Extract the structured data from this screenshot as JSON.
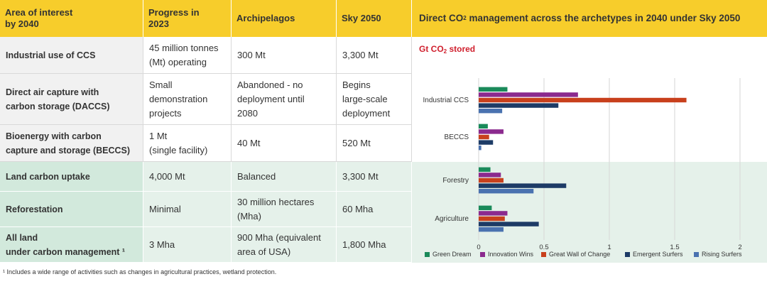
{
  "table": {
    "headers": [
      "Area of interest\nby 2040",
      "Progress in\n2023",
      "Archipelagos",
      "Sky 2050"
    ],
    "rows": [
      {
        "label": "Industrial use of CCS",
        "progress": "45 million tonnes\n(Mt) operating",
        "archipelagos": "300 Mt",
        "sky2050": "3,300 Mt"
      },
      {
        "label": "Direct air capture with\ncarbon storage (DACCS)",
        "progress": "Small\ndemonstration\nprojects",
        "archipelagos": "Abandoned - no\ndeployment until\n2080",
        "sky2050": "Begins\nlarge-scale\ndeployment"
      },
      {
        "label": "Bioenergy with carbon\ncapture and storage (BECCS)",
        "progress": "1 Mt\n(single facility)",
        "archipelagos": "40 Mt",
        "sky2050": "520 Mt"
      },
      {
        "label": "Land carbon uptake",
        "progress": "4,000 Mt",
        "archipelagos": "Balanced",
        "sky2050": "3,300 Mt"
      },
      {
        "label": "Reforestation",
        "progress": "Minimal",
        "archipelagos": "30 million hectares\n(Mha)",
        "sky2050": "60 Mha"
      },
      {
        "label": "All land\nunder carbon management ¹",
        "progress": "3 Mha",
        "archipelagos": "900 Mha (equivalent\narea of USA)",
        "sky2050": "1,800 Mha"
      }
    ]
  },
  "chart_data": {
    "type": "bar",
    "orientation": "horizontal",
    "title_prefix": "Direct CO",
    "title_sub": "2",
    "title_suffix": " management across the archetypes in 2040 under Sky 2050",
    "subtitle_prefix": "Gt CO",
    "subtitle_sub": "2",
    "subtitle_suffix": " stored",
    "categories": [
      "Industrial CCS",
      "BECCS",
      "Forestry",
      "Agriculture"
    ],
    "xlim": [
      0,
      2
    ],
    "xticks": [
      "0",
      "0.5",
      "1",
      "1.5",
      "2"
    ],
    "xtick_values": [
      0,
      0.5,
      1,
      1.5,
      2
    ],
    "grid": true,
    "legend_position": "bottom",
    "series": [
      {
        "name": "Green Dream",
        "color": "#1a8a5a",
        "values": [
          0.22,
          0.07,
          0.09,
          0.1
        ]
      },
      {
        "name": "Innovation Wins",
        "color": "#8b2a8e",
        "values": [
          0.76,
          0.19,
          0.17,
          0.22
        ]
      },
      {
        "name": "Great Wall of Change",
        "color": "#c8401c",
        "values": [
          1.59,
          0.08,
          0.19,
          0.2
        ]
      },
      {
        "name": "Emergent Surfers",
        "color": "#1d3b66",
        "values": [
          0.61,
          0.11,
          0.67,
          0.46
        ]
      },
      {
        "name": "Rising Surfers",
        "color": "#4a72b0",
        "values": [
          0.18,
          0.02,
          0.42,
          0.19
        ]
      }
    ]
  },
  "footnote": "¹ Includes a wide range of activities such as changes in agricultural practices, wetland protection."
}
